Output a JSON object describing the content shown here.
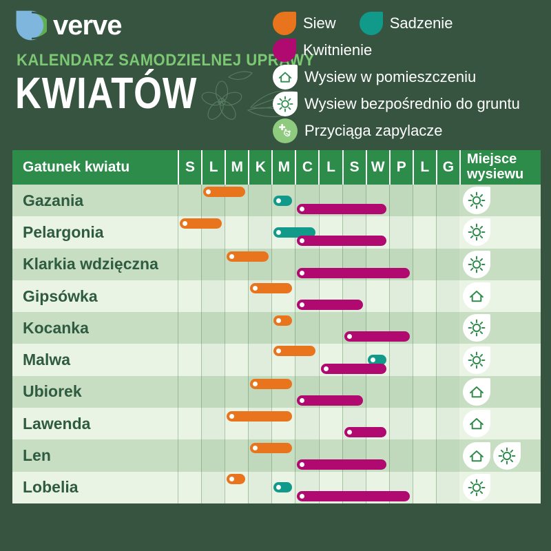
{
  "colors": {
    "bg": "#365440",
    "header_green": "#2E8C4B",
    "accent_light_green": "#7CC873",
    "band_dark": "#C7DEC2",
    "band_light": "#E9F4E4",
    "label_green": "#2F5B40",
    "siew": "#E8751D",
    "sadzenie": "#11998A",
    "kwitnienie": "#B00970",
    "pollinator_green": "#8FCB7F"
  },
  "brand": {
    "name": "verve"
  },
  "header": {
    "subtitle": "KALENDARZ SAMODZIELNEJ UPRAWY",
    "title": "KWIATÓW"
  },
  "legend": {
    "siew": "Siew",
    "sadzenie": "Sadzenie",
    "kwitnienie": "Kwitnienie",
    "indoor": "Wysiew w pomieszczeniu",
    "direct": "Wysiew bezpośrednio do gruntu",
    "pollinators": "Przyciąga zapylacze"
  },
  "calendar": {
    "species_header": "Gatunek kwiatu",
    "months": [
      "S",
      "L",
      "M",
      "K",
      "M",
      "C",
      "L",
      "S",
      "W",
      "P",
      "L",
      "G"
    ],
    "place_header_line1": "Miejsce",
    "place_header_line2": "wysiewu"
  },
  "chart_data": {
    "type": "table",
    "title": "KALENDARZ SAMODZIELNEJ UPRAWY KWIATÓW",
    "x_categories_months": [
      "S",
      "L",
      "M",
      "K",
      "M",
      "C",
      "L",
      "S",
      "W",
      "P",
      "L",
      "G"
    ],
    "series_legend": [
      "Siew",
      "Sadzenie",
      "Kwitnienie"
    ],
    "place_values_legend": [
      "Wysiew w pomieszczeniu",
      "Wysiew bezpośrednio do gruntu"
    ],
    "rows": [
      {
        "name": "Gazania",
        "siew": [
          2,
          3
        ],
        "sadzenie": [
          5,
          5
        ],
        "kwitnienie": [
          6,
          9
        ],
        "miejsce": [
          "grunt"
        ]
      },
      {
        "name": "Pelargonia",
        "siew": [
          1,
          2
        ],
        "sadzenie": [
          5,
          6
        ],
        "kwitnienie": [
          6,
          9
        ],
        "miejsce": [
          "grunt"
        ]
      },
      {
        "name": "Klarkia wdzięczna",
        "siew": [
          3,
          4
        ],
        "sadzenie": null,
        "kwitnienie": [
          6,
          10
        ],
        "miejsce": [
          "grunt"
        ]
      },
      {
        "name": "Gipsówka",
        "siew": [
          4,
          5
        ],
        "sadzenie": null,
        "kwitnienie": [
          6,
          8
        ],
        "miejsce": [
          "pomieszczenie"
        ]
      },
      {
        "name": "Kocanka",
        "siew": [
          5,
          5
        ],
        "sadzenie": null,
        "kwitnienie": [
          8,
          10
        ],
        "miejsce": [
          "grunt"
        ]
      },
      {
        "name": "Malwa",
        "siew": [
          5,
          6
        ],
        "sadzenie": [
          9,
          9
        ],
        "kwitnienie": [
          7,
          9
        ],
        "miejsce": [
          "grunt"
        ]
      },
      {
        "name": "Ubiorek",
        "siew": [
          4,
          5
        ],
        "sadzenie": null,
        "kwitnienie": [
          6,
          8
        ],
        "miejsce": [
          "pomieszczenie"
        ]
      },
      {
        "name": "Lawenda",
        "siew": [
          3,
          5
        ],
        "sadzenie": null,
        "kwitnienie": [
          8,
          9
        ],
        "miejsce": [
          "pomieszczenie"
        ]
      },
      {
        "name": "Len",
        "siew": [
          4,
          5
        ],
        "sadzenie": null,
        "kwitnienie": [
          6,
          9
        ],
        "miejsce": [
          "pomieszczenie",
          "grunt"
        ]
      },
      {
        "name": "Lobelia",
        "siew": [
          3,
          3
        ],
        "sadzenie": [
          5,
          5
        ],
        "kwitnienie": [
          6,
          10
        ],
        "miejsce": [
          "grunt"
        ]
      }
    ]
  }
}
